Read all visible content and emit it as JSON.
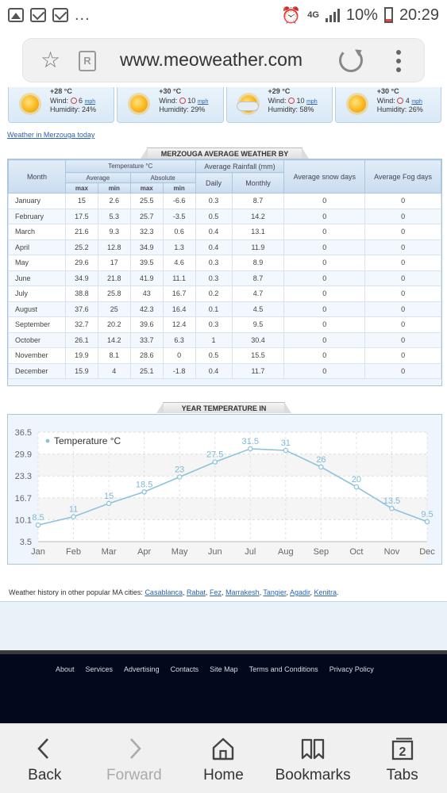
{
  "status_bar": {
    "battery": "10%",
    "time": "20:29",
    "network": "4G",
    "ellipsis": "..."
  },
  "browser": {
    "url": "www.meoweather.com",
    "reader_label": "R"
  },
  "forecast": [
    {
      "temp": "+28 °C",
      "wind_prefix": "Wind:",
      "wind_value": "6",
      "wind_unit": "mph",
      "humidity": "Humidity: 24%",
      "icon": "sun-icon"
    },
    {
      "temp": "+30 °C",
      "wind_prefix": "Wind:",
      "wind_value": "10",
      "wind_unit": "mph",
      "humidity": "Humidity: 29%",
      "icon": "sun-icon"
    },
    {
      "temp": "+29 °C",
      "wind_prefix": "Wind:",
      "wind_value": "10",
      "wind_unit": "mph",
      "humidity": "Humidity: 58%",
      "icon": "partly-cloudy-icon"
    },
    {
      "temp": "+30 °C",
      "wind_prefix": "Wind:",
      "wind_value": "4",
      "wind_unit": "mph",
      "humidity": "Humidity: 26%",
      "icon": "sun-icon"
    }
  ],
  "today_link": "Weather in Merzouga today",
  "monthly_table": {
    "title": "MERZOUGA AVERAGE WEATHER BY MONTH",
    "headers": {
      "month": "Month",
      "temperature": "Temperature °C",
      "average": "Average",
      "absolute": "Absolute",
      "rainfall": "Average Rainfall (mm)",
      "daily": "Daily",
      "monthly": "Monthly",
      "snow": "Average snow days",
      "fog": "Average Fog days",
      "max": "max",
      "min": "min"
    },
    "rows": [
      {
        "month": "January",
        "avg_max": "15",
        "avg_min": "2.6",
        "abs_max": "25.5",
        "abs_min": "-6.6",
        "daily": "0.3",
        "monthly": "8.7",
        "snow": "0",
        "fog": "0"
      },
      {
        "month": "February",
        "avg_max": "17.5",
        "avg_min": "5.3",
        "abs_max": "25.7",
        "abs_min": "-3.5",
        "daily": "0.5",
        "monthly": "14.2",
        "snow": "0",
        "fog": "0"
      },
      {
        "month": "March",
        "avg_max": "21.6",
        "avg_min": "9.3",
        "abs_max": "32.3",
        "abs_min": "0.6",
        "daily": "0.4",
        "monthly": "13.1",
        "snow": "0",
        "fog": "0"
      },
      {
        "month": "April",
        "avg_max": "25.2",
        "avg_min": "12.8",
        "abs_max": "34.9",
        "abs_min": "1.3",
        "daily": "0.4",
        "monthly": "11.9",
        "snow": "0",
        "fog": "0"
      },
      {
        "month": "May",
        "avg_max": "29.6",
        "avg_min": "17",
        "abs_max": "39.5",
        "abs_min": "4.6",
        "daily": "0.3",
        "monthly": "8.9",
        "snow": "0",
        "fog": "0"
      },
      {
        "month": "June",
        "avg_max": "34.9",
        "avg_min": "21.8",
        "abs_max": "41.9",
        "abs_min": "11.1",
        "daily": "0.3",
        "monthly": "8.7",
        "snow": "0",
        "fog": "0"
      },
      {
        "month": "July",
        "avg_max": "38.8",
        "avg_min": "25.8",
        "abs_max": "43",
        "abs_min": "16.7",
        "daily": "0.2",
        "monthly": "4.7",
        "snow": "0",
        "fog": "0"
      },
      {
        "month": "August",
        "avg_max": "37.6",
        "avg_min": "25",
        "abs_max": "42.3",
        "abs_min": "16.4",
        "daily": "0.1",
        "monthly": "4.5",
        "snow": "0",
        "fog": "0"
      },
      {
        "month": "September",
        "avg_max": "32.7",
        "avg_min": "20.2",
        "abs_max": "39.6",
        "abs_min": "12.4",
        "daily": "0.3",
        "monthly": "9.5",
        "snow": "0",
        "fog": "0"
      },
      {
        "month": "October",
        "avg_max": "26.1",
        "avg_min": "14.2",
        "abs_max": "33.7",
        "abs_min": "6.3",
        "daily": "1",
        "monthly": "30.4",
        "snow": "0",
        "fog": "0"
      },
      {
        "month": "November",
        "avg_max": "19.9",
        "avg_min": "8.1",
        "abs_max": "28.6",
        "abs_min": "0",
        "daily": "0.5",
        "monthly": "15.5",
        "snow": "0",
        "fog": "0"
      },
      {
        "month": "December",
        "avg_max": "15.9",
        "avg_min": "4",
        "abs_max": "25.1",
        "abs_min": "-1.8",
        "daily": "0.4",
        "monthly": "11.7",
        "snow": "0",
        "fog": "0"
      }
    ]
  },
  "chart_section_title": "YEAR TEMPERATURE IN AVERAGE",
  "chart_data": {
    "type": "line",
    "title": "",
    "xlabel": "",
    "ylabel": "",
    "x": [
      "Jan",
      "Feb",
      "Mar",
      "Apr",
      "May",
      "Jun",
      "Jul",
      "Aug",
      "Sep",
      "Oct",
      "Nov",
      "Dec"
    ],
    "series": [
      {
        "name": "Temperature °C",
        "values": [
          8.5,
          11,
          15,
          18.5,
          23,
          27.5,
          31.5,
          31,
          26,
          20,
          13.5,
          9.5
        ],
        "color": "#8ec3dc"
      }
    ],
    "y_ticks": [
      "36.5",
      "29.9",
      "23.3",
      "16.7",
      "10.1",
      "3.5"
    ],
    "ylim": [
      3.5,
      36.5
    ],
    "grid": true,
    "legend_position": "top-left"
  },
  "popular_cities": {
    "prefix": "Weather history in other popular MA cities:",
    "cities": [
      "Casablanca",
      "Rabat",
      "Fez",
      "Marrakesh",
      "Tangier",
      "Agadir",
      "Kenitra"
    ]
  },
  "footer_links": [
    "About",
    "Services",
    "Advertising",
    "Contacts",
    "Site Map",
    "Terms and Conditions",
    "Privacy Policy"
  ],
  "bottom_nav": [
    {
      "label": "Back",
      "icon": "back-icon",
      "enabled": true
    },
    {
      "label": "Forward",
      "icon": "forward-icon",
      "enabled": false
    },
    {
      "label": "Home",
      "icon": "home-icon",
      "enabled": true
    },
    {
      "label": "Bookmarks",
      "icon": "bookmarks-icon",
      "enabled": true
    },
    {
      "label": "Tabs",
      "icon": "tabs-icon",
      "enabled": true,
      "badge": "2"
    }
  ]
}
